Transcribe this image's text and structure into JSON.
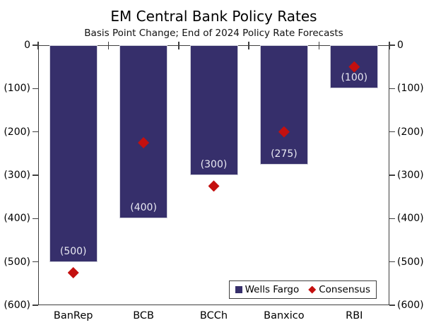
{
  "chart_data": {
    "type": "bar",
    "title": "EM Central Bank Policy Rates",
    "subtitle": "Basis Point Change; End of 2024 Policy Rate Forecasts",
    "categories": [
      "BanRep",
      "BCB",
      "BCCh",
      "Banxico",
      "RBI"
    ],
    "series": [
      {
        "name": "Wells Fargo",
        "type": "bar",
        "color": "#362F6B",
        "values": [
          -500,
          -400,
          -300,
          -275,
          -100
        ],
        "labels": [
          "(500)",
          "(400)",
          "(300)",
          "(275)",
          "(100)"
        ]
      },
      {
        "name": "Consensus",
        "type": "scatter",
        "marker": "diamond",
        "color": "#C4100F",
        "values": [
          -525,
          -225,
          -325,
          -200,
          -50
        ]
      }
    ],
    "y_axis": {
      "min": -600,
      "max": 0,
      "tick_interval": 100,
      "tick_labels": [
        "0",
        "(100)",
        "(200)",
        "(300)",
        "(400)",
        "(500)",
        "(600)"
      ],
      "sides": [
        "left",
        "right"
      ]
    },
    "x_axis": {
      "label": "",
      "ticks_on_top_boundaries": true
    },
    "legend": {
      "position": "bottom-right",
      "entries": [
        "Wells Fargo",
        "Consensus"
      ]
    },
    "grid": false,
    "background": "#FFFFFF",
    "bar_label_color": "#E9E9F2",
    "axis_color": "#3F3F3F"
  }
}
